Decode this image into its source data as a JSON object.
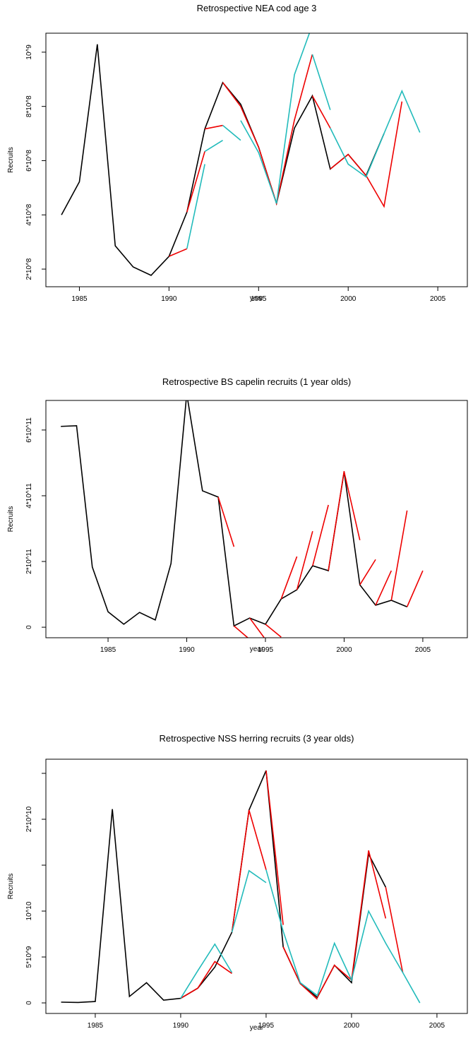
{
  "chart_data": [
    {
      "type": "line",
      "title": "Retrospective NEA cod age 3",
      "xlabel": "year",
      "ylabel": "Recruits",
      "xlim": [
        1983.13,
        2006.65
      ],
      "xticks": [
        1985,
        1990,
        1995,
        2000,
        2005
      ],
      "ylim": [
        135000000.0,
        1070000000.0
      ],
      "yticks": [
        {
          "value": 200000000.0,
          "label": "2*10^8"
        },
        {
          "value": 400000000.0,
          "label": "4*10^8"
        },
        {
          "value": 600000000.0,
          "label": "6*10^8"
        },
        {
          "value": 800000000.0,
          "label": "8*10^8"
        },
        {
          "value": 1000000000.0,
          "label": "10^9"
        }
      ],
      "series": [
        {
          "color": "#000000",
          "x": [
            1984,
            1985,
            1986,
            1987,
            1988,
            1989,
            1990,
            1991,
            1992,
            1993,
            1994,
            1995,
            1996,
            1997,
            1998,
            1999,
            2000,
            2001,
            2002
          ],
          "values": [
            400000000.0,
            522000000.0,
            1029000000.0,
            286000000.0,
            208000000.0,
            177000000.0,
            247000000.0,
            410000000.0,
            717000000.0,
            888000000.0,
            808000000.0,
            650000000.0,
            442000000.0,
            720000000.0,
            839000000.0,
            569000000.0,
            623000000.0,
            545000000.0,
            700000000.0
          ]
        },
        {
          "color": "#ee0000",
          "x": [
            1990,
            1991,
            null,
            1991,
            1992,
            null,
            1992,
            1993,
            null,
            1993,
            1994,
            1995,
            null,
            1995,
            1996,
            1997,
            1998,
            null,
            1998,
            1999,
            null,
            1999,
            2000,
            2001,
            2002,
            2003
          ],
          "values": [
            247000000.0,
            275000000.0,
            null,
            410000000.0,
            634000000.0,
            null,
            717000000.0,
            730000000.0,
            null,
            888000000.0,
            800000000.0,
            650000000.0,
            null,
            650000000.0,
            442000000.0,
            750000000.0,
            992000000.0,
            null,
            839000000.0,
            720000000.0,
            null,
            569000000.0,
            623000000.0,
            545000000.0,
            431000000.0,
            818000000.0
          ]
        },
        {
          "color": "#22bbbb",
          "x": [
            1991,
            1992,
            null,
            1992,
            1993,
            null,
            1993,
            1994,
            null,
            1994,
            1995,
            1996,
            1997,
            1998,
            null,
            1998,
            1999,
            null,
            1999,
            2000,
            2001,
            2002,
            2003,
            2004
          ],
          "values": [
            275000000.0,
            587000000.0,
            null,
            634000000.0,
            675000000.0,
            null,
            730000000.0,
            675000000.0,
            null,
            748000000.0,
            630000000.0,
            442000000.0,
            917000000.0,
            1100000000.0,
            null,
            992000000.0,
            787000000.0,
            null,
            720000000.0,
            587000000.0,
            540000000.0,
            700000000.0,
            857000000.0,
            704000000.0
          ]
        }
      ]
    },
    {
      "type": "line",
      "title": "Retrospective BS capelin recruits (1 year olds)",
      "xlabel": "year",
      "ylabel": "Recruits",
      "xlim": [
        1981.05,
        2007.83
      ],
      "xticks": [
        1985,
        1990,
        1995,
        2000,
        2005
      ],
      "ylim": [
        -32000000000.0,
        690000000000.0
      ],
      "yticks": [
        0,
        {
          "value": 200000000000.0,
          "label": "2*10^11"
        },
        {
          "value": 400000000000.0,
          "label": "4*10^11"
        },
        {
          "value": 600000000000.0,
          "label": "6*10^11"
        }
      ],
      "series": [
        {
          "color": "#000000",
          "x": [
            1982,
            1983,
            1984,
            1985,
            1986,
            1987,
            1988,
            1989,
            1990,
            1991,
            1992,
            1993,
            1994,
            1995,
            1996,
            1997,
            1998,
            1999,
            2000,
            2001,
            2002,
            2003,
            2004
          ],
          "values": [
            611000000000.0,
            613000000000.0,
            183000000000.0,
            47000000000.0,
            9000000000.0,
            45000000000.0,
            22000000000.0,
            194000000000.0,
            710000000000.0,
            415000000000.0,
            396000000000.0,
            4000000000.0,
            28000000000.0,
            9000000000.0,
            86000000000.0,
            114000000000.0,
            187000000000.0,
            172000000000.0,
            473000000000.0,
            129000000000.0,
            67000000000.0,
            82000000000.0,
            62000000000.0
          ]
        },
        {
          "color": "#ee0000",
          "x": [
            1992,
            1993,
            null,
            1993,
            1994,
            null,
            1994,
            1995,
            null,
            1995,
            1996,
            null,
            1996,
            1997,
            null,
            1997,
            1998,
            null,
            1998,
            1999,
            null,
            1999,
            2000,
            null,
            2000,
            2001,
            null,
            2001,
            2002,
            null,
            2002,
            2003,
            null,
            2003,
            2004,
            null,
            2004,
            2005
          ],
          "values": [
            396000000000.0,
            245000000000.0,
            null,
            4000000000.0,
            -37000000000.0,
            null,
            28000000000.0,
            -37000000000.0,
            null,
            9000000000.0,
            -30000000000.0,
            null,
            86000000000.0,
            215000000000.0,
            null,
            114000000000.0,
            292000000000.0,
            null,
            187000000000.0,
            372000000000.0,
            null,
            172000000000.0,
            475000000000.0,
            null,
            473000000000.0,
            265000000000.0,
            null,
            129000000000.0,
            206000000000.0,
            null,
            67000000000.0,
            172000000000.0,
            null,
            82000000000.0,
            355000000000.0,
            null,
            62000000000.0,
            172000000000.0
          ]
        }
      ]
    },
    {
      "type": "line",
      "title": "Retrospective NSS herring recruits (3 year olds)",
      "xlabel": "year",
      "ylabel": "Recruits",
      "xlim": [
        1982.11,
        2006.78
      ],
      "xticks": [
        1985,
        1990,
        1995,
        2000,
        2005
      ],
      "ylim": [
        -1150000000.0,
        26540000000.0
      ],
      "yticks": [
        0,
        {
          "value": 5000000000.0,
          "label": "5*10^9"
        },
        {
          "value": 10000000000.0,
          "label": "10^10"
        },
        {
          "value": 15000000000.0,
          "label": null
        },
        {
          "value": 20000000000.0,
          "label": "2*10^10"
        },
        {
          "value": 25000000000.0,
          "label": null
        }
      ],
      "series": [
        {
          "color": "#000000",
          "x": [
            1983,
            1984,
            1985,
            1986,
            1987,
            1988,
            1989,
            1990,
            1991,
            1992,
            1993,
            1994,
            1995,
            1996,
            1997,
            1998,
            1999,
            2000,
            2001,
            2002
          ],
          "values": [
            80000000.0,
            50000000.0,
            150000000.0,
            21100000000.0,
            700000000.0,
            2200000000.0,
            300000000.0,
            500000000.0,
            1600000000.0,
            3900000000.0,
            7700000000.0,
            21000000000.0,
            25300000000.0,
            6100000000.0,
            2100000000.0,
            600000000.0,
            4100000000.0,
            2200000000.0,
            16200000000.0,
            12600000000.0
          ]
        },
        {
          "color": "#ee0000",
          "x": [
            1990,
            1991,
            1992,
            1993,
            null,
            1993,
            1994,
            1995,
            null,
            1995,
            1996,
            null,
            1996,
            1997,
            1998,
            null,
            1998,
            1999,
            2000,
            2001,
            2002,
            null,
            2002,
            2003
          ],
          "values": [
            500000000.0,
            1600000000.0,
            4500000000.0,
            3200000000.0,
            null,
            7700000000.0,
            21000000000.0,
            14500000000.0,
            null,
            25300000000.0,
            8500000000.0,
            null,
            6100000000.0,
            2100000000.0,
            400000000.0,
            null,
            600000000.0,
            4100000000.0,
            2500000000.0,
            16600000000.0,
            9200000000.0,
            null,
            12600000000.0,
            3300000000.0
          ]
        },
        {
          "color": "#22bbbb",
          "x": [
            1990,
            1991,
            1992,
            1993,
            null,
            1993,
            1994,
            1995,
            null,
            1995,
            1996,
            1997,
            1998,
            1999,
            2000,
            2001,
            2002,
            2003,
            2004
          ],
          "values": [
            500000000.0,
            3500000000.0,
            6400000000.0,
            3300000000.0,
            null,
            7700000000.0,
            14400000000.0,
            13100000000.0,
            null,
            14500000000.0,
            7800000000.0,
            2200000000.0,
            800000000.0,
            6500000000.0,
            2500000000.0,
            10000000000.0,
            6500000000.0,
            3300000000.0,
            0
          ]
        }
      ]
    }
  ]
}
